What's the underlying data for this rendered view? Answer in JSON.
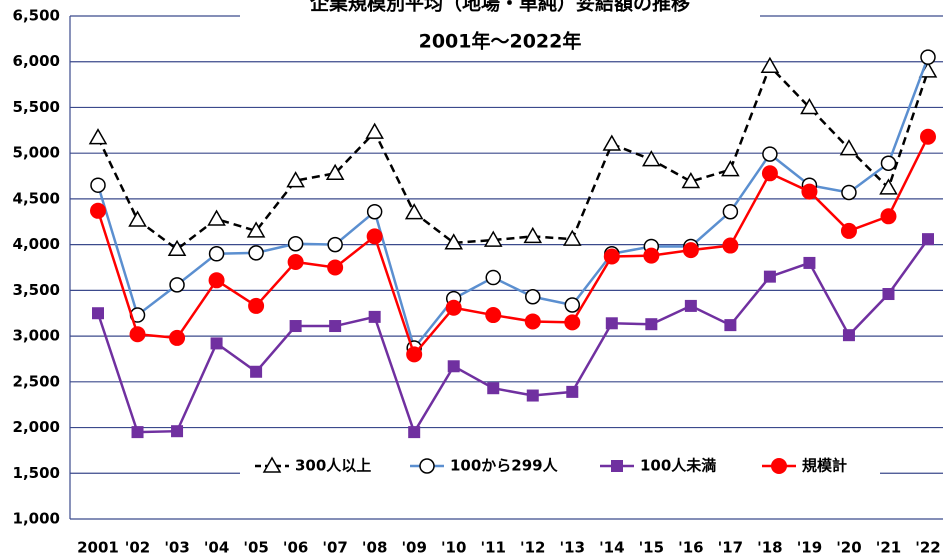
{
  "chart_data": {
    "type": "line",
    "title": "企業規模別平均（地場・単純）妥結額の推移",
    "subtitle": "2001年～2022年",
    "categories": [
      "2001",
      "'02",
      "'03",
      "'04",
      "'05",
      "'06",
      "'07",
      "'08",
      "'09",
      "'10",
      "'11",
      "'12",
      "'13",
      "'14",
      "'15",
      "'16",
      "'17",
      "'18",
      "'19",
      "'20",
      "'21",
      "'22"
    ],
    "series": [
      {
        "name": "300人以上",
        "color": "#000000",
        "dash": true,
        "marker": "triangle",
        "values": [
          5170,
          4270,
          3950,
          4280,
          4150,
          4700,
          4780,
          5230,
          4350,
          4020,
          4050,
          4090,
          4060,
          5100,
          4930,
          4690,
          4820,
          5950,
          5500,
          5050,
          4620,
          5900
        ]
      },
      {
        "name": "100から299人",
        "color": "#5b8fd0",
        "dash": false,
        "marker": "circle",
        "values": [
          4650,
          3230,
          3560,
          3900,
          3910,
          4010,
          4000,
          4360,
          2870,
          3410,
          3640,
          3430,
          3340,
          3900,
          3980,
          3980,
          4360,
          4990,
          4650,
          4570,
          4890,
          6050
        ]
      },
      {
        "name": "100人未満",
        "color": "#7030a0",
        "dash": false,
        "marker": "square",
        "values": [
          3250,
          1950,
          1960,
          2920,
          2610,
          3110,
          3110,
          3210,
          1950,
          2670,
          2430,
          2350,
          2390,
          3140,
          3130,
          3330,
          3120,
          3650,
          3800,
          3010,
          3460,
          4060
        ]
      },
      {
        "name": "規模計",
        "color": "#ff0000",
        "dash": false,
        "marker": "dot",
        "values": [
          4370,
          3020,
          2980,
          3610,
          3330,
          3810,
          3750,
          4090,
          2800,
          3310,
          3230,
          3160,
          3150,
          3870,
          3880,
          3940,
          3990,
          4780,
          4580,
          4150,
          4310,
          5180
        ]
      }
    ],
    "ylim": [
      1000,
      6500
    ],
    "yticks": [
      {
        "value": 1000,
        "label": "1,000"
      },
      {
        "value": 1500,
        "label": "1,500"
      },
      {
        "value": 2000,
        "label": "2,000"
      },
      {
        "value": 2500,
        "label": "2,500"
      },
      {
        "value": 3000,
        "label": "3,000"
      },
      {
        "value": 3500,
        "label": "3,500"
      },
      {
        "value": 4000,
        "label": "4,000"
      },
      {
        "value": 4500,
        "label": "4,500"
      },
      {
        "value": 5000,
        "label": "5,000"
      },
      {
        "value": 5500,
        "label": "5,500"
      },
      {
        "value": 6000,
        "label": "6,000"
      },
      {
        "value": 6500,
        "label": "6,500"
      }
    ],
    "grid": true,
    "legend": "bottom"
  }
}
